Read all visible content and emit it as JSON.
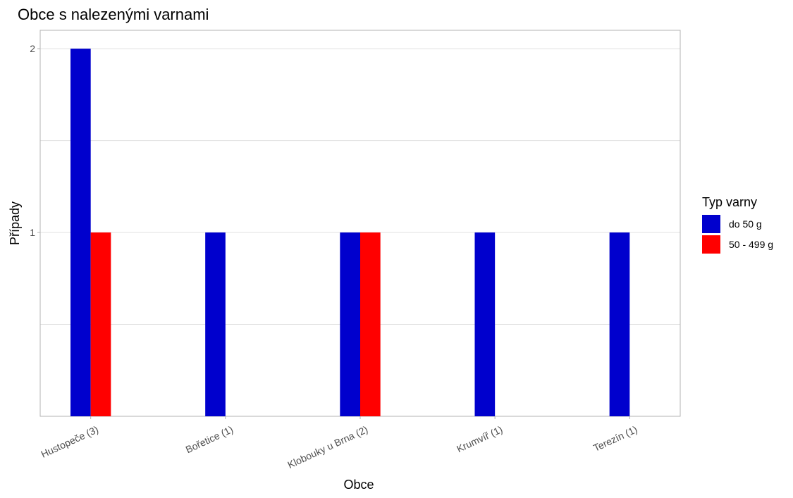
{
  "chart_data": {
    "type": "bar",
    "title": "Obce s nalezenými varnami",
    "xlabel": "Obce",
    "ylabel": "Případy",
    "categories": [
      "Hustopeče (3)",
      "Bořetice (1)",
      "Klobouky u Brna (2)",
      "Krumvíř (1)",
      "Terezín (1)"
    ],
    "series": [
      {
        "name": "do 50 g",
        "color": "#0000CD",
        "values": [
          2,
          1,
          1,
          1,
          1
        ]
      },
      {
        "name": "50 - 499 g",
        "color": "#FF0000",
        "values": [
          1,
          0,
          1,
          0,
          0
        ]
      }
    ],
    "ylim": [
      0,
      2.1
    ],
    "yticks": [
      1,
      2
    ],
    "ytick_labels": [
      "1",
      "2"
    ],
    "grid": true,
    "legend": {
      "title": "Typ varny",
      "placement": "right"
    }
  }
}
